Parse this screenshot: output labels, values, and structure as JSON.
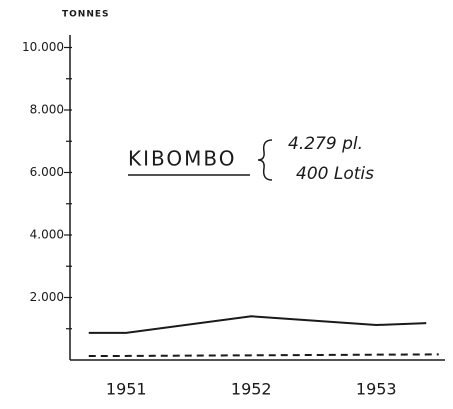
{
  "chart_data": {
    "type": "line",
    "y_label": "TONNES",
    "annotations": [
      "KIBOMBO",
      "4.279 pl.",
      "400 Lotis"
    ],
    "xlim": [
      1950.55,
      1953.55
    ],
    "xticks": [
      1951,
      1952,
      1953
    ],
    "ylim": [
      0,
      10400
    ],
    "yticks": [
      {
        "value": 2000,
        "label": "2.000"
      },
      {
        "value": 4000,
        "label": "4.000"
      },
      {
        "value": 6000,
        "label": "6.000"
      },
      {
        "value": 8000,
        "label": "8.000"
      },
      {
        "value": 10000,
        "label": "10.000"
      }
    ],
    "minor_yticks": [
      1000,
      3000,
      5000,
      7000,
      9000
    ],
    "series": [
      {
        "color": "#1a1a1a",
        "dashed": false,
        "x": [
          1950.7,
          1951,
          1952,
          1953,
          1953.4
        ],
        "values": [
          870,
          870,
          1400,
          1120,
          1180
        ]
      },
      {
        "color": "#1a1a1a",
        "dashed": true,
        "x": [
          1950.7,
          1951,
          1952,
          1953.5
        ],
        "values": [
          130,
          130,
          150,
          180
        ]
      }
    ]
  }
}
